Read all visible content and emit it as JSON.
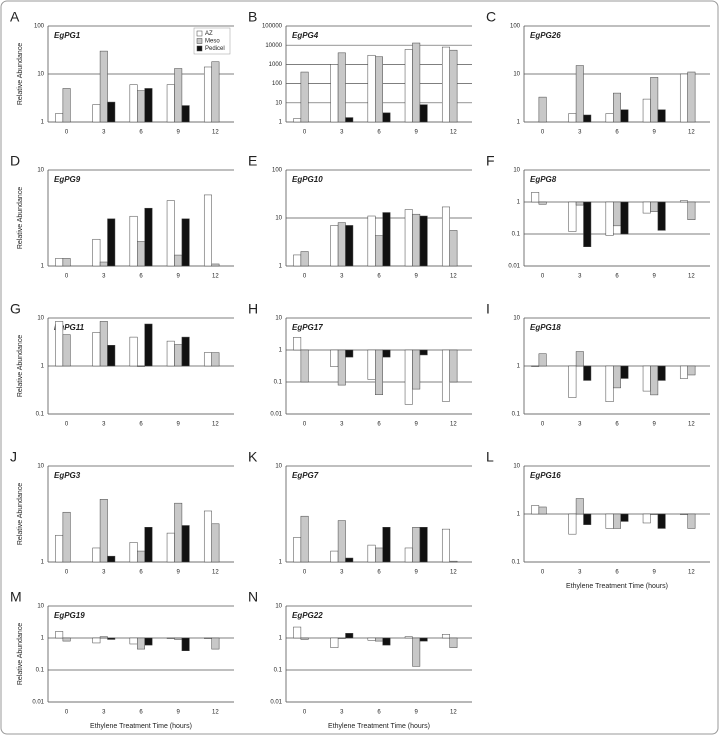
{
  "chart_data": [
    {
      "type": "bar",
      "panel": "A",
      "title": "EgPG1",
      "categories": [
        "0",
        "3",
        "6",
        "9",
        "12"
      ],
      "log": true,
      "ylim": [
        1,
        100
      ],
      "yticks": [
        1,
        10,
        100
      ],
      "grid": true,
      "ylabel": "Relative Abundance",
      "legend": "top-right",
      "series": [
        {
          "name": "AZ",
          "color": "#ffffff",
          "values": [
            1.5,
            2.3,
            6,
            6,
            14
          ]
        },
        {
          "name": "Meso",
          "color": "#c8c8c8",
          "values": [
            5,
            30,
            4.5,
            13,
            18
          ]
        },
        {
          "name": "Pedicel",
          "color": "#111111",
          "values": [
            null,
            2.6,
            5,
            2.2,
            null
          ]
        }
      ]
    },
    {
      "type": "bar",
      "panel": "B",
      "title": "EgPG4",
      "categories": [
        "0",
        "3",
        "6",
        "9",
        "12"
      ],
      "log": true,
      "ylim": [
        1,
        100000
      ],
      "yticks": [
        1,
        10,
        100,
        1000,
        10000,
        100000
      ],
      "grid": true,
      "series": [
        {
          "color": "#ffffff",
          "values": [
            1.5,
            1000,
            3000,
            6000,
            8000
          ]
        },
        {
          "color": "#c8c8c8",
          "values": [
            400,
            4000,
            2500,
            13000,
            5500
          ]
        },
        {
          "color": "#111111",
          "values": [
            null,
            1.7,
            3,
            8,
            null
          ]
        }
      ]
    },
    {
      "type": "bar",
      "panel": "C",
      "title": "EgPG26",
      "categories": [
        "0",
        "3",
        "6",
        "9",
        "12"
      ],
      "log": true,
      "ylim": [
        1,
        100
      ],
      "yticks": [
        1,
        10,
        100
      ],
      "grid": true,
      "series": [
        {
          "color": "#ffffff",
          "values": [
            null,
            1.5,
            1.5,
            3,
            10
          ]
        },
        {
          "color": "#c8c8c8",
          "values": [
            3.3,
            15,
            4,
            8.5,
            11
          ]
        },
        {
          "color": "#111111",
          "values": [
            null,
            1.4,
            1.8,
            1.8,
            null
          ]
        }
      ]
    },
    {
      "type": "bar",
      "panel": "D",
      "title": "EgPG9",
      "categories": [
        "0",
        "3",
        "6",
        "9",
        "12"
      ],
      "log": true,
      "ylim": [
        1,
        10
      ],
      "yticks": [
        1,
        10
      ],
      "grid": true,
      "ylabel": "Relative Abundance",
      "series": [
        {
          "color": "#ffffff",
          "values": [
            1.2,
            1.9,
            3.3,
            4.8,
            5.5
          ]
        },
        {
          "color": "#c8c8c8",
          "values": [
            1.2,
            1.1,
            1.8,
            1.3,
            1.05
          ]
        },
        {
          "color": "#111111",
          "values": [
            null,
            3.1,
            4,
            3.1,
            null
          ]
        }
      ]
    },
    {
      "type": "bar",
      "panel": "E",
      "title": "EgPG10",
      "categories": [
        "0",
        "3",
        "6",
        "9",
        "12"
      ],
      "log": true,
      "ylim": [
        1,
        100
      ],
      "yticks": [
        1,
        10,
        100
      ],
      "grid": true,
      "series": [
        {
          "color": "#ffffff",
          "values": [
            1.7,
            7,
            11,
            15,
            17
          ]
        },
        {
          "color": "#c8c8c8",
          "values": [
            2,
            8,
            4.3,
            12,
            5.5
          ]
        },
        {
          "color": "#111111",
          "values": [
            null,
            7,
            13,
            11,
            null
          ]
        }
      ]
    },
    {
      "type": "bar",
      "panel": "F",
      "title": "EgPG8",
      "categories": [
        "0",
        "3",
        "6",
        "9",
        "12"
      ],
      "log": true,
      "ylim": [
        0.01,
        10
      ],
      "yticks": [
        0.01,
        0.1,
        1,
        10
      ],
      "grid": true,
      "series": [
        {
          "color": "#ffffff",
          "values": [
            2,
            0.12,
            0.09,
            0.45,
            1.1
          ]
        },
        {
          "color": "#c8c8c8",
          "values": [
            0.85,
            0.8,
            0.18,
            0.5,
            0.28
          ]
        },
        {
          "color": "#111111",
          "values": [
            null,
            0.04,
            0.1,
            0.13,
            null
          ]
        }
      ]
    },
    {
      "type": "bar",
      "panel": "G",
      "title": "EgPG11",
      "categories": [
        "0",
        "3",
        "6",
        "9",
        "12"
      ],
      "log": true,
      "ylim": [
        0.1,
        10
      ],
      "yticks": [
        0.1,
        1,
        10
      ],
      "grid": true,
      "ylabel": "Relative Abundance",
      "series": [
        {
          "color": "#ffffff",
          "values": [
            8.5,
            5,
            4,
            3.3,
            1.9
          ]
        },
        {
          "color": "#c8c8c8",
          "values": [
            4.5,
            8.5,
            1,
            2.8,
            1.9
          ]
        },
        {
          "color": "#111111",
          "values": [
            null,
            2.7,
            7.5,
            4,
            null
          ]
        }
      ]
    },
    {
      "type": "bar",
      "panel": "H",
      "title": "EgPG17",
      "categories": [
        "0",
        "3",
        "6",
        "9",
        "12"
      ],
      "log": true,
      "ylim": [
        0.01,
        10
      ],
      "yticks": [
        0.01,
        0.1,
        1,
        10
      ],
      "grid": true,
      "series": [
        {
          "color": "#ffffff",
          "values": [
            2.5,
            0.3,
            0.12,
            0.02,
            0.025
          ]
        },
        {
          "color": "#c8c8c8",
          "values": [
            0.1,
            0.08,
            0.04,
            0.06,
            0.1
          ]
        },
        {
          "color": "#111111",
          "values": [
            null,
            0.6,
            0.6,
            0.7,
            null
          ]
        }
      ]
    },
    {
      "type": "bar",
      "panel": "I",
      "title": "EgPG18",
      "categories": [
        "0",
        "3",
        "6",
        "9",
        "12"
      ],
      "log": true,
      "ylim": [
        0.1,
        10
      ],
      "yticks": [
        0.1,
        1,
        10
      ],
      "grid": true,
      "series": [
        {
          "color": "#ffffff",
          "values": [
            1,
            0.22,
            0.18,
            0.3,
            0.55
          ]
        },
        {
          "color": "#c8c8c8",
          "values": [
            1.8,
            2,
            0.35,
            0.25,
            0.65
          ]
        },
        {
          "color": "#111111",
          "values": [
            null,
            0.5,
            0.55,
            0.5,
            null
          ]
        }
      ]
    },
    {
      "type": "bar",
      "panel": "J",
      "title": "EgPG3",
      "categories": [
        "0",
        "3",
        "6",
        "9",
        "12"
      ],
      "log": true,
      "ylim": [
        1,
        10
      ],
      "yticks": [
        1,
        10
      ],
      "grid": true,
      "ylabel": "Relative Abundance",
      "series": [
        {
          "color": "#ffffff",
          "values": [
            1.9,
            1.4,
            1.6,
            2,
            3.4
          ]
        },
        {
          "color": "#c8c8c8",
          "values": [
            3.3,
            4.5,
            1.3,
            4.1,
            2.5
          ]
        },
        {
          "color": "#111111",
          "values": [
            null,
            1.15,
            2.3,
            2.4,
            null
          ]
        }
      ]
    },
    {
      "type": "bar",
      "panel": "K",
      "title": "EgPG7",
      "categories": [
        "0",
        "3",
        "6",
        "9",
        "12"
      ],
      "log": true,
      "ylim": [
        1,
        10
      ],
      "yticks": [
        1,
        10
      ],
      "grid": true,
      "series": [
        {
          "color": "#ffffff",
          "values": [
            1.8,
            1.3,
            1.5,
            1.4,
            2.2
          ]
        },
        {
          "color": "#c8c8c8",
          "values": [
            3,
            2.7,
            1.4,
            2.3,
            1.02
          ]
        },
        {
          "color": "#111111",
          "values": [
            null,
            1.1,
            2.3,
            2.3,
            null
          ]
        }
      ]
    },
    {
      "type": "bar",
      "panel": "L",
      "title": "EgPG16",
      "categories": [
        "0",
        "3",
        "6",
        "9",
        "12"
      ],
      "log": true,
      "ylim": [
        0.1,
        10
      ],
      "yticks": [
        0.1,
        1,
        10
      ],
      "grid": true,
      "xlabel": "Ethylene Treatment Time (hours)",
      "series": [
        {
          "color": "#ffffff",
          "values": [
            1.5,
            0.38,
            0.5,
            0.65,
            1
          ]
        },
        {
          "color": "#c8c8c8",
          "values": [
            1.4,
            2.1,
            0.5,
            1,
            0.5
          ]
        },
        {
          "color": "#111111",
          "values": [
            null,
            0.6,
            0.7,
            0.5,
            null
          ]
        }
      ]
    },
    {
      "type": "bar",
      "panel": "M",
      "title": "EgPG19",
      "categories": [
        "0",
        "3",
        "6",
        "9",
        "12"
      ],
      "log": true,
      "ylim": [
        0.01,
        10
      ],
      "yticks": [
        0.01,
        0.1,
        1,
        10
      ],
      "grid": true,
      "ylabel": "Relative Abundance",
      "xlabel": "Ethylene Treatment Time (hours)",
      "series": [
        {
          "color": "#ffffff",
          "values": [
            1.6,
            0.7,
            0.65,
            1,
            1
          ]
        },
        {
          "color": "#c8c8c8",
          "values": [
            0.8,
            1.1,
            0.45,
            0.9,
            0.45
          ]
        },
        {
          "color": "#111111",
          "values": [
            null,
            0.9,
            0.6,
            0.4,
            null
          ]
        }
      ]
    },
    {
      "type": "bar",
      "panel": "N",
      "title": "EgPG22",
      "categories": [
        "0",
        "3",
        "6",
        "9",
        "12"
      ],
      "log": true,
      "ylim": [
        0.01,
        10
      ],
      "yticks": [
        0.01,
        0.1,
        1,
        10
      ],
      "grid": true,
      "xlabel": "Ethylene Treatment Time (hours)",
      "series": [
        {
          "color": "#ffffff",
          "values": [
            2.2,
            0.5,
            0.85,
            1.1,
            1.3
          ]
        },
        {
          "color": "#c8c8c8",
          "values": [
            0.9,
            1,
            0.8,
            0.13,
            0.5
          ]
        },
        {
          "color": "#111111",
          "values": [
            null,
            1.4,
            0.6,
            0.8,
            null
          ]
        }
      ]
    }
  ]
}
